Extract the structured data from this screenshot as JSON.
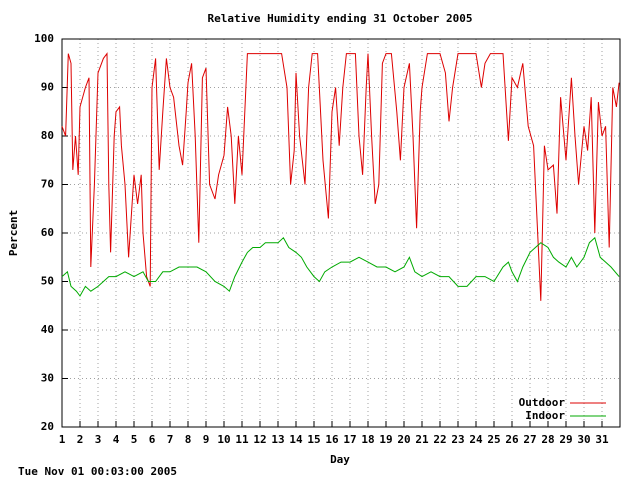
{
  "chart_data": {
    "type": "line",
    "title": "Relative Humidity ending 31 October 2005",
    "x_label": "Day",
    "y_label": "Percent",
    "footer": "Tue Nov 01 00:03:00 2005",
    "xlim": [
      1,
      32
    ],
    "xticks": [
      1,
      2,
      3,
      4,
      5,
      6,
      7,
      8,
      9,
      10,
      11,
      12,
      13,
      14,
      15,
      16,
      17,
      18,
      19,
      20,
      21,
      22,
      23,
      24,
      25,
      26,
      27,
      28,
      29,
      30,
      31
    ],
    "ylim": [
      20,
      100
    ],
    "yticks": [
      20,
      30,
      40,
      50,
      60,
      70,
      80,
      90,
      100
    ],
    "grid": true,
    "legend": "bottom-right",
    "series": [
      {
        "name": "Outdoor",
        "color": "#dd0000",
        "x": [
          1.0,
          1.2,
          1.35,
          1.5,
          1.6,
          1.75,
          1.9,
          2.0,
          2.3,
          2.5,
          2.6,
          2.8,
          3.0,
          3.3,
          3.5,
          3.6,
          3.7,
          3.9,
          4.0,
          4.2,
          4.3,
          4.5,
          4.7,
          5.0,
          5.2,
          5.4,
          5.5,
          5.7,
          5.9,
          6.0,
          6.2,
          6.4,
          6.6,
          6.8,
          7.0,
          7.2,
          7.5,
          7.7,
          7.9,
          8.0,
          8.2,
          8.4,
          8.6,
          8.8,
          9.0,
          9.2,
          9.5,
          9.7,
          10.0,
          10.2,
          10.4,
          10.6,
          10.8,
          11.0,
          11.3,
          11.6,
          12.0,
          12.5,
          13.0,
          13.2,
          13.5,
          13.7,
          13.9,
          14.0,
          14.2,
          14.5,
          14.7,
          14.9,
          15.2,
          15.5,
          15.8,
          16.0,
          16.2,
          16.4,
          16.6,
          16.8,
          17.0,
          17.3,
          17.5,
          17.7,
          17.9,
          18.0,
          18.2,
          18.4,
          18.6,
          18.8,
          19.0,
          19.3,
          19.6,
          19.8,
          20.0,
          20.3,
          20.5,
          20.7,
          20.9,
          21.0,
          21.3,
          21.6,
          22.0,
          22.3,
          22.5,
          22.7,
          23.0,
          23.5,
          24.0,
          24.3,
          24.5,
          24.8,
          25.2,
          25.5,
          25.8,
          26.0,
          26.3,
          26.6,
          26.9,
          27.2,
          27.4,
          27.6,
          27.8,
          28.0,
          28.3,
          28.5,
          28.7,
          29.0,
          29.3,
          29.5,
          29.7,
          30.0,
          30.2,
          30.4,
          30.6,
          30.8,
          31.0,
          31.2,
          31.4,
          31.6,
          31.8,
          31.95
        ],
        "values": [
          82,
          80,
          97,
          95,
          73,
          80,
          72,
          86,
          90,
          92,
          53,
          70,
          93,
          96,
          97,
          70,
          56,
          80,
          85,
          86,
          78,
          70,
          55,
          72,
          66,
          72,
          60,
          51,
          49,
          90,
          96,
          73,
          85,
          96,
          90,
          88,
          78,
          74,
          85,
          91,
          95,
          80,
          58,
          92,
          94,
          70,
          67,
          72,
          76,
          86,
          80,
          66,
          80,
          72,
          97,
          97,
          97,
          97,
          97,
          97,
          90,
          70,
          77,
          93,
          80,
          70,
          90,
          97,
          97,
          75,
          63,
          85,
          90,
          78,
          90,
          97,
          97,
          97,
          80,
          72,
          90,
          97,
          80,
          66,
          70,
          95,
          97,
          97,
          85,
          75,
          90,
          95,
          80,
          61,
          85,
          90,
          97,
          97,
          97,
          93,
          83,
          90,
          97,
          97,
          97,
          90,
          95,
          97,
          97,
          97,
          79,
          92,
          90,
          95,
          82,
          78,
          62,
          46,
          78,
          73,
          74,
          64,
          88,
          75,
          92,
          80,
          70,
          82,
          77,
          88,
          60,
          87,
          80,
          82,
          57,
          90,
          86,
          91
        ]
      },
      {
        "name": "Indoor",
        "color": "#00aa00",
        "x": [
          1.0,
          1.3,
          1.5,
          1.8,
          2.0,
          2.3,
          2.6,
          3.0,
          3.3,
          3.6,
          4.0,
          4.5,
          5.0,
          5.5,
          5.8,
          6.2,
          6.6,
          7.0,
          7.5,
          8.0,
          8.5,
          9.0,
          9.5,
          10.0,
          10.3,
          10.6,
          11.0,
          11.3,
          11.6,
          12.0,
          12.3,
          12.6,
          13.0,
          13.3,
          13.6,
          14.0,
          14.3,
          14.6,
          15.0,
          15.3,
          15.6,
          16.0,
          16.5,
          17.0,
          17.5,
          18.0,
          18.5,
          19.0,
          19.5,
          20.0,
          20.3,
          20.6,
          21.0,
          21.5,
          22.0,
          22.5,
          23.0,
          23.5,
          24.0,
          24.5,
          25.0,
          25.5,
          25.8,
          26.0,
          26.3,
          26.6,
          27.0,
          27.3,
          27.6,
          28.0,
          28.3,
          28.6,
          29.0,
          29.3,
          29.6,
          30.0,
          30.3,
          30.6,
          30.9,
          31.2,
          31.5,
          31.95
        ],
        "values": [
          51,
          52,
          49,
          48,
          47,
          49,
          48,
          49,
          50,
          51,
          51,
          52,
          51,
          52,
          50,
          50,
          52,
          52,
          53,
          53,
          53,
          52,
          50,
          49,
          48,
          51,
          54,
          56,
          57,
          57,
          58,
          58,
          58,
          59,
          57,
          56,
          55,
          53,
          51,
          50,
          52,
          53,
          54,
          54,
          55,
          54,
          53,
          53,
          52,
          53,
          55,
          52,
          51,
          52,
          51,
          51,
          49,
          49,
          51,
          51,
          50,
          53,
          54,
          52,
          50,
          53,
          56,
          57,
          58,
          57,
          55,
          54,
          53,
          55,
          53,
          55,
          58,
          59,
          55,
          54,
          53,
          51
        ]
      }
    ]
  }
}
